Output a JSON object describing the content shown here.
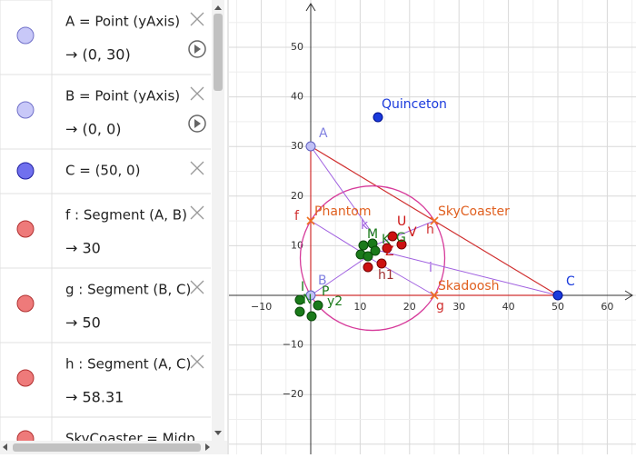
{
  "algebra": {
    "items": [
      {
        "definition": "A = Point (yAxis)",
        "value": "→ (0, 30)"
      },
      {
        "definition": "B = Point (yAxis)",
        "value": "→ (0, 0)"
      },
      {
        "definition": "C = (50, 0)"
      },
      {
        "definition": "f : Segment (A, B)",
        "value": "→ 30"
      },
      {
        "definition": "g : Segment (B, C)",
        "value": "→ 50"
      },
      {
        "definition": "h : Segment (A, C)",
        "value": "→ 58.31"
      },
      {
        "definition": "SkyCoaster = Midp"
      }
    ]
  },
  "graphics": {
    "x_tick_labels": [
      "−10",
      "10",
      "20",
      "30",
      "40",
      "50",
      "60"
    ],
    "y_tick_labels": [
      "50",
      "40",
      "30",
      "20",
      "10",
      "−10",
      "−20"
    ],
    "labels": [
      "A",
      "B",
      "C",
      "Quinceton",
      "Phantom",
      "SkyCoaster",
      "Skadoosh",
      "f",
      "g",
      "h",
      "i",
      "k",
      "U",
      "V",
      "G",
      "M",
      "K",
      "Z",
      "h1",
      "I",
      "N",
      "P",
      "y2"
    ]
  }
}
